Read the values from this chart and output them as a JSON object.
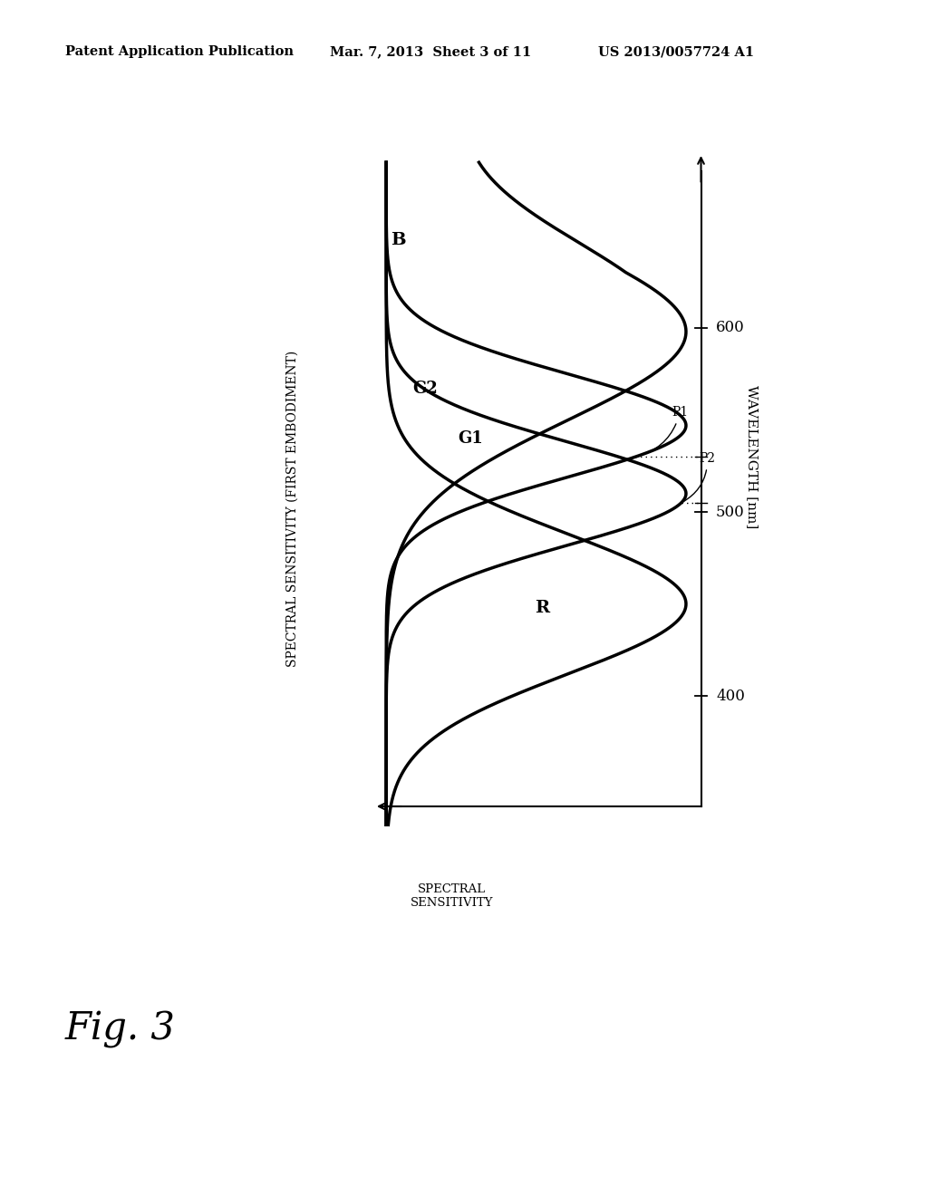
{
  "title_line1": "Patent Application Publication",
  "title_line2": "Mar. 7, 2013  Sheet 3 of 11",
  "title_line3": "US 2013/0057724 A1",
  "fig_label": "Fig. 3",
  "diagram_title": "SPECTRAL SENSITIVITY (FIRST EMBODIMENT)",
  "wavelength_label": "WAVELENGTH [nm]",
  "sensitivity_label": "SPECTRAL\nSENSITIVITY",
  "wl_ticks": [
    400,
    500,
    600
  ],
  "p1_wl": 530,
  "p2_wl": 505,
  "background_color": "#ffffff",
  "curve_color": "#000000",
  "lw": 2.5
}
